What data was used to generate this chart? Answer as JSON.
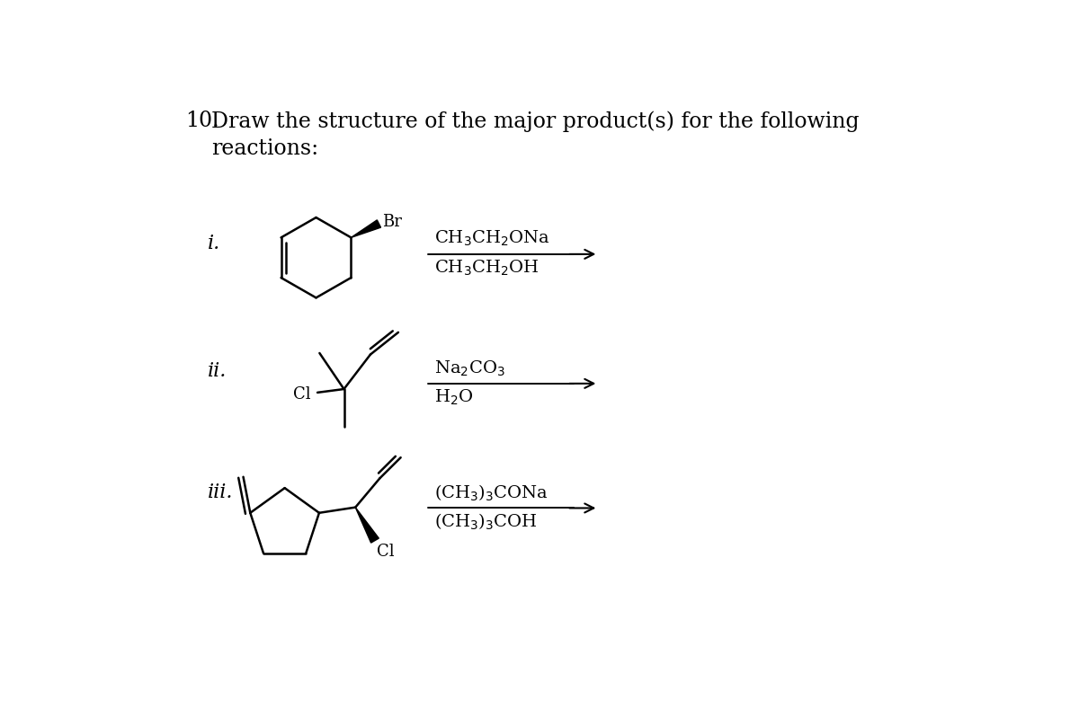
{
  "bg_color": "#ffffff",
  "text_color": "#000000",
  "title_num": "10.",
  "title_line1": "Draw the structure of the major product(s) for the following",
  "title_line2": "reactions:",
  "title_fontsize": 17,
  "label_fontsize": 16,
  "reagent_fontsize": 14,
  "reagents_i_top": "CH$_3$CH$_2$ONa",
  "reagents_i_bot": "CH$_3$CH$_2$OH",
  "reagents_ii_top": "Na$_2$CO$_3$",
  "reagents_ii_bot": "H$_2$O",
  "reagents_iii_top": "(CH$_3$)$_3$CONa",
  "reagents_iii_bot": "(CH$_3$)$_3$COH"
}
